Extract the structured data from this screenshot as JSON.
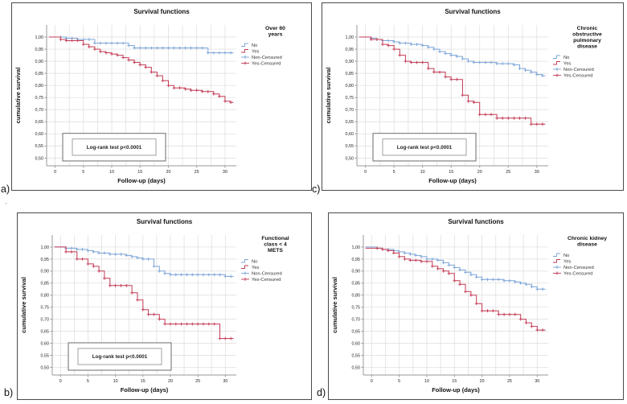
{
  "figure": {
    "panel_labels": [
      "a)",
      "b)",
      "c)",
      "d)"
    ],
    "stray_mark": "'",
    "colors": {
      "no_line": "#7ba4d8",
      "yes_line": "#c23a54",
      "grid": "#dcdcdc",
      "axis": "#9a9a9a",
      "text": "#111111",
      "legend_text": "#333333",
      "panel_border": "#4a4a4a",
      "annotation_border": "#6b6b6b"
    }
  },
  "chart_data": [
    {
      "id": "a",
      "type": "line",
      "subtype": "kaplan-meier-step",
      "title": "Survival functions",
      "xlabel": "Follow-up (days)",
      "ylabel": "cumulative survival",
      "legend_title_lines": [
        "Over 60",
        "years"
      ],
      "legend_entries": [
        {
          "label": "No",
          "symbol": "step",
          "color": "#7ba4d8"
        },
        {
          "label": "Yes",
          "symbol": "step",
          "color": "#c23a54"
        },
        {
          "label": "Non-Censured",
          "symbol": "plus-line",
          "color": "#7ba4d8"
        },
        {
          "label": "Yes-Censured",
          "symbol": "plus-line",
          "color": "#c23a54"
        }
      ],
      "annotation": "Log-rank test p<0.0001",
      "xlim": [
        -1.5,
        32
      ],
      "ylim": [
        0.468,
        1.05
      ],
      "xticks": [
        0,
        5,
        10,
        15,
        20,
        25,
        30
      ],
      "x_minor_grid_step": 2.5,
      "ytick_values": [
        1.0,
        0.95,
        0.9,
        0.85,
        0.8,
        0.75,
        0.7,
        0.65,
        0.6,
        0.55,
        0.5
      ],
      "ytick_labels": [
        "1,00",
        "0,95",
        "0,90",
        "0,85",
        "0,80",
        "0,75",
        "0,70",
        "0,65",
        "0,60",
        "0,55",
        "0,50"
      ],
      "series": [
        {
          "name": "No",
          "color": "#7ba4d8",
          "steps": [
            [
              0,
              1.0
            ],
            [
              2,
              0.995
            ],
            [
              4,
              0.99
            ],
            [
              7,
              0.975
            ],
            [
              13,
              0.965
            ],
            [
              14,
              0.955
            ],
            [
              27,
              0.935
            ]
          ]
        },
        {
          "name": "Yes",
          "color": "#c23a54",
          "steps": [
            [
              0,
              1.0
            ],
            [
              1,
              0.99
            ],
            [
              2,
              0.985
            ],
            [
              5,
              0.97
            ],
            [
              6,
              0.96
            ],
            [
              7,
              0.95
            ],
            [
              8,
              0.94
            ],
            [
              9,
              0.935
            ],
            [
              10,
              0.93
            ],
            [
              11,
              0.925
            ],
            [
              12,
              0.915
            ],
            [
              13,
              0.905
            ],
            [
              14,
              0.895
            ],
            [
              15,
              0.885
            ],
            [
              16,
              0.875
            ],
            [
              17,
              0.855
            ],
            [
              18,
              0.84
            ],
            [
              19,
              0.82
            ],
            [
              20,
              0.8
            ],
            [
              21,
              0.79
            ],
            [
              23,
              0.785
            ],
            [
              24,
              0.78
            ],
            [
              26,
              0.775
            ],
            [
              28,
              0.765
            ],
            [
              29,
              0.755
            ],
            [
              30,
              0.735
            ],
            [
              31,
              0.73
            ]
          ]
        }
      ]
    },
    {
      "id": "b",
      "type": "line",
      "subtype": "kaplan-meier-step",
      "title": "Survival functions",
      "xlabel": "Follow-up (days)",
      "ylabel": "cumulative survival",
      "legend_title_lines": [
        "Functional",
        "class < 4",
        "METS"
      ],
      "legend_entries": [
        {
          "label": "No",
          "symbol": "step",
          "color": "#7ba4d8"
        },
        {
          "label": "Yes",
          "symbol": "step",
          "color": "#c23a54"
        },
        {
          "label": "Non-Censured",
          "symbol": "plus-line",
          "color": "#7ba4d8"
        },
        {
          "label": "Yes-Censured",
          "symbol": "plus-line",
          "color": "#c23a54"
        }
      ],
      "annotation": "Log-rank test p<0.0001",
      "xlim": [
        -1.5,
        32
      ],
      "ylim": [
        0.468,
        1.05
      ],
      "xticks": [
        0,
        5,
        10,
        15,
        20,
        25,
        30
      ],
      "x_minor_grid_step": 2.5,
      "ytick_values": [
        1.0,
        0.95,
        0.9,
        0.85,
        0.8,
        0.75,
        0.7,
        0.65,
        0.6,
        0.55,
        0.5
      ],
      "ytick_labels": [
        "1,00",
        "0,95",
        "0,90",
        "0,85",
        "0,80",
        "0,75",
        "0,70",
        "0,65",
        "0,60",
        "0,55",
        "0,50"
      ],
      "series": [
        {
          "name": "No",
          "color": "#7ba4d8",
          "steps": [
            [
              0,
              1.0
            ],
            [
              1,
              0.995
            ],
            [
              3,
              0.99
            ],
            [
              5,
              0.985
            ],
            [
              6,
              0.98
            ],
            [
              7,
              0.975
            ],
            [
              9,
              0.97
            ],
            [
              12,
              0.965
            ],
            [
              13,
              0.96
            ],
            [
              14,
              0.955
            ],
            [
              15,
              0.95
            ],
            [
              17,
              0.92
            ],
            [
              18,
              0.9
            ],
            [
              19,
              0.89
            ],
            [
              20,
              0.885
            ],
            [
              30,
              0.878
            ]
          ]
        },
        {
          "name": "Yes",
          "color": "#c23a54",
          "steps": [
            [
              0,
              1.0
            ],
            [
              1,
              0.98
            ],
            [
              3,
              0.95
            ],
            [
              5,
              0.93
            ],
            [
              6,
              0.92
            ],
            [
              7,
              0.9
            ],
            [
              8,
              0.87
            ],
            [
              9,
              0.84
            ],
            [
              13,
              0.81
            ],
            [
              14,
              0.78
            ],
            [
              15,
              0.74
            ],
            [
              16,
              0.72
            ],
            [
              18,
              0.7
            ],
            [
              19,
              0.68
            ],
            [
              29,
              0.62
            ]
          ]
        }
      ]
    },
    {
      "id": "c",
      "type": "line",
      "subtype": "kaplan-meier-step",
      "title": "Survival functions",
      "xlabel": "Follow-up (days)",
      "ylabel": "cumulative survival",
      "legend_title_lines": [
        "Chronic",
        "obstructive",
        "pulmonary",
        "disease"
      ],
      "legend_entries": [
        {
          "label": "No",
          "symbol": "step",
          "color": "#7ba4d8"
        },
        {
          "label": "Yes",
          "symbol": "step",
          "color": "#c23a54"
        },
        {
          "label": "Non-Censured",
          "symbol": "plus-line",
          "color": "#7ba4d8"
        },
        {
          "label": "Yes-Censured",
          "symbol": "plus-line",
          "color": "#c23a54"
        }
      ],
      "annotation": "Log-rank test p<0.0001",
      "xlim": [
        -1.5,
        32
      ],
      "ylim": [
        0.468,
        1.05
      ],
      "xticks": [
        0,
        5,
        10,
        15,
        20,
        25,
        30
      ],
      "x_minor_grid_step": 2.5,
      "ytick_values": [
        1.0,
        0.95,
        0.9,
        0.85,
        0.8,
        0.75,
        0.7,
        0.65,
        0.6,
        0.55,
        0.5
      ],
      "ytick_labels": [
        "1,00",
        "0,95",
        "0,90",
        "0,85",
        "0,80",
        "0,75",
        "0,70",
        "0,65",
        "0,60",
        "0,55",
        "0,50"
      ],
      "series": [
        {
          "name": "No",
          "color": "#7ba4d8",
          "steps": [
            [
              0,
              1.0
            ],
            [
              1,
              0.995
            ],
            [
              2,
              0.99
            ],
            [
              3,
              0.985
            ],
            [
              5,
              0.98
            ],
            [
              6,
              0.975
            ],
            [
              8,
              0.97
            ],
            [
              10,
              0.965
            ],
            [
              11,
              0.958
            ],
            [
              12,
              0.95
            ],
            [
              13,
              0.94
            ],
            [
              14,
              0.932
            ],
            [
              15,
              0.925
            ],
            [
              16,
              0.92
            ],
            [
              17,
              0.91
            ],
            [
              18,
              0.9
            ],
            [
              19,
              0.895
            ],
            [
              23,
              0.89
            ],
            [
              26,
              0.885
            ],
            [
              27,
              0.87
            ],
            [
              28,
              0.863
            ],
            [
              29,
              0.855
            ],
            [
              30,
              0.845
            ],
            [
              31,
              0.84
            ]
          ]
        },
        {
          "name": "Yes",
          "color": "#c23a54",
          "steps": [
            [
              0,
              1.0
            ],
            [
              1,
              0.99
            ],
            [
              3,
              0.97
            ],
            [
              4,
              0.965
            ],
            [
              5,
              0.95
            ],
            [
              6,
              0.925
            ],
            [
              7,
              0.9
            ],
            [
              8,
              0.895
            ],
            [
              11,
              0.87
            ],
            [
              12,
              0.855
            ],
            [
              14,
              0.835
            ],
            [
              15,
              0.825
            ],
            [
              17,
              0.76
            ],
            [
              18,
              0.735
            ],
            [
              19,
              0.73
            ],
            [
              20,
              0.68
            ],
            [
              23,
              0.665
            ],
            [
              29,
              0.64
            ]
          ]
        }
      ]
    },
    {
      "id": "d",
      "type": "line",
      "subtype": "kaplan-meier-step",
      "title": "Survival functions",
      "xlabel": "Follow-up (days)",
      "ylabel": "cumulative survival",
      "legend_title_lines": [
        "Chronic kidney",
        "disease"
      ],
      "legend_entries": [
        {
          "label": "No",
          "symbol": "step",
          "color": "#7ba4d8"
        },
        {
          "label": "Yes",
          "symbol": "step",
          "color": "#c23a54"
        },
        {
          "label": "Non-Censured",
          "symbol": "plus-line",
          "color": "#7ba4d8"
        },
        {
          "label": "Yes-Censured",
          "symbol": "plus-line",
          "color": "#c23a54"
        }
      ],
      "annotation": null,
      "xlim": [
        -1.5,
        32
      ],
      "ylim": [
        0.468,
        1.05
      ],
      "xticks": [
        0,
        5,
        10,
        15,
        20,
        25,
        30
      ],
      "x_minor_grid_step": 2.5,
      "ytick_values": [
        1.0,
        0.95,
        0.9,
        0.85,
        0.8,
        0.75,
        0.7,
        0.65,
        0.6,
        0.55,
        0.5
      ],
      "ytick_labels": [
        "1,00",
        "0,95",
        "0,90",
        "0,85",
        "0,80",
        "0,75",
        "0,70",
        "0,65",
        "0,60",
        "0,55",
        "0,50"
      ],
      "series": [
        {
          "name": "No",
          "color": "#7ba4d8",
          "steps": [
            [
              0,
              1.0
            ],
            [
              1,
              0.995
            ],
            [
              2,
              0.99
            ],
            [
              4,
              0.985
            ],
            [
              5,
              0.98
            ],
            [
              6,
              0.975
            ],
            [
              7,
              0.97
            ],
            [
              8,
              0.965
            ],
            [
              9,
              0.96
            ],
            [
              10,
              0.95
            ],
            [
              12,
              0.945
            ],
            [
              13,
              0.935
            ],
            [
              14,
              0.925
            ],
            [
              15,
              0.915
            ],
            [
              16,
              0.905
            ],
            [
              17,
              0.895
            ],
            [
              18,
              0.885
            ],
            [
              19,
              0.875
            ],
            [
              20,
              0.865
            ],
            [
              24,
              0.86
            ],
            [
              26,
              0.855
            ],
            [
              27,
              0.85
            ],
            [
              28,
              0.845
            ],
            [
              29,
              0.835
            ],
            [
              30,
              0.825
            ]
          ]
        },
        {
          "name": "Yes",
          "color": "#c23a54",
          "steps": [
            [
              0,
              0.995
            ],
            [
              2,
              0.99
            ],
            [
              3,
              0.985
            ],
            [
              4,
              0.975
            ],
            [
              5,
              0.96
            ],
            [
              6,
              0.95
            ],
            [
              7,
              0.945
            ],
            [
              9,
              0.94
            ],
            [
              11,
              0.92
            ],
            [
              12,
              0.91
            ],
            [
              13,
              0.9
            ],
            [
              14,
              0.89
            ],
            [
              15,
              0.86
            ],
            [
              16,
              0.845
            ],
            [
              17,
              0.815
            ],
            [
              18,
              0.8
            ],
            [
              19,
              0.765
            ],
            [
              20,
              0.735
            ],
            [
              23,
              0.72
            ],
            [
              27,
              0.7
            ],
            [
              28,
              0.685
            ],
            [
              29,
              0.67
            ],
            [
              30,
              0.655
            ]
          ]
        }
      ]
    }
  ]
}
